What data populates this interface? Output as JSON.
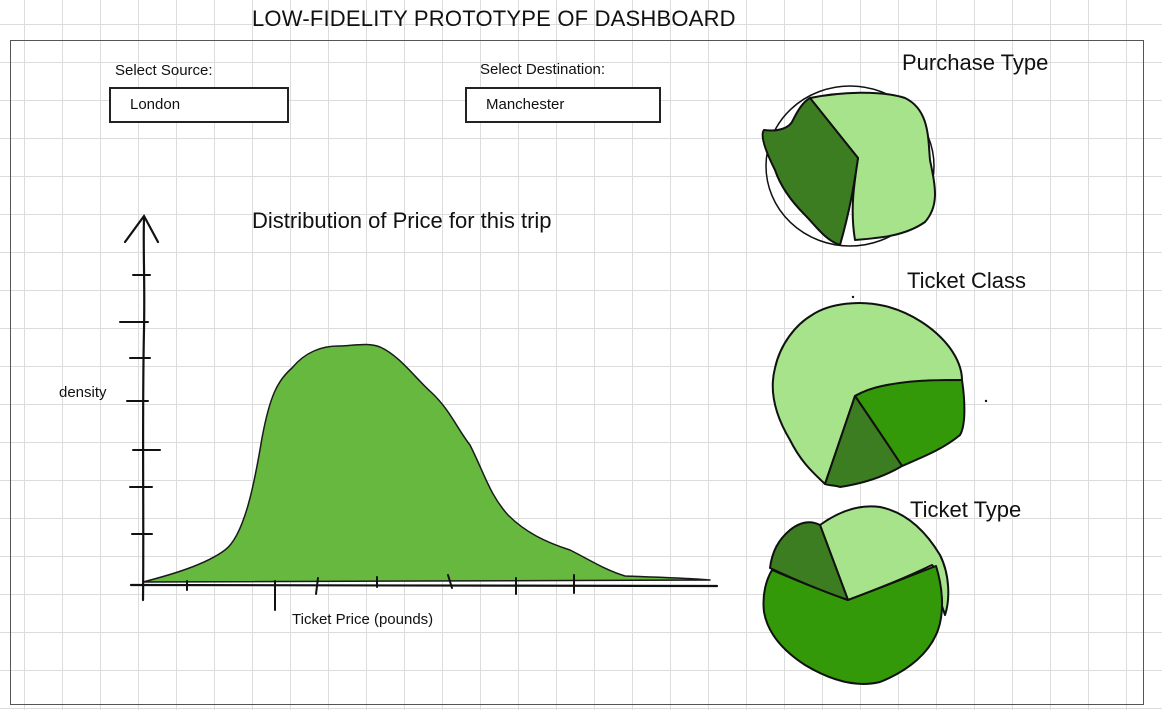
{
  "page": {
    "title": "LOW-FIDELITY PROTOTYPE OF DASHBOARD"
  },
  "filters": {
    "source": {
      "label": "Select Source:",
      "value": "London"
    },
    "destination": {
      "label": "Select Destination:",
      "value": "Manchester"
    }
  },
  "chart_data": [
    {
      "type": "area",
      "title": "Distribution of Price for this trip",
      "xlabel": "Ticket Price (pounds)",
      "ylabel": "density",
      "fill": "#66b93e"
    },
    {
      "type": "pie",
      "title": "Purchase Type",
      "colors": [
        "#a7e38a",
        "#3d7d22"
      ]
    },
    {
      "type": "pie",
      "title": "Ticket Class",
      "colors": [
        "#a7e38a",
        "#339908",
        "#3d7d22"
      ]
    },
    {
      "type": "pie",
      "title": "Ticket Type",
      "colors": [
        "#a7e38a",
        "#339908",
        "#3d7d22"
      ]
    }
  ],
  "colors": {
    "light_green": "#a7e38a",
    "mid_green": "#339908",
    "dark_green": "#3d7d22",
    "density_fill": "#66b93e"
  }
}
